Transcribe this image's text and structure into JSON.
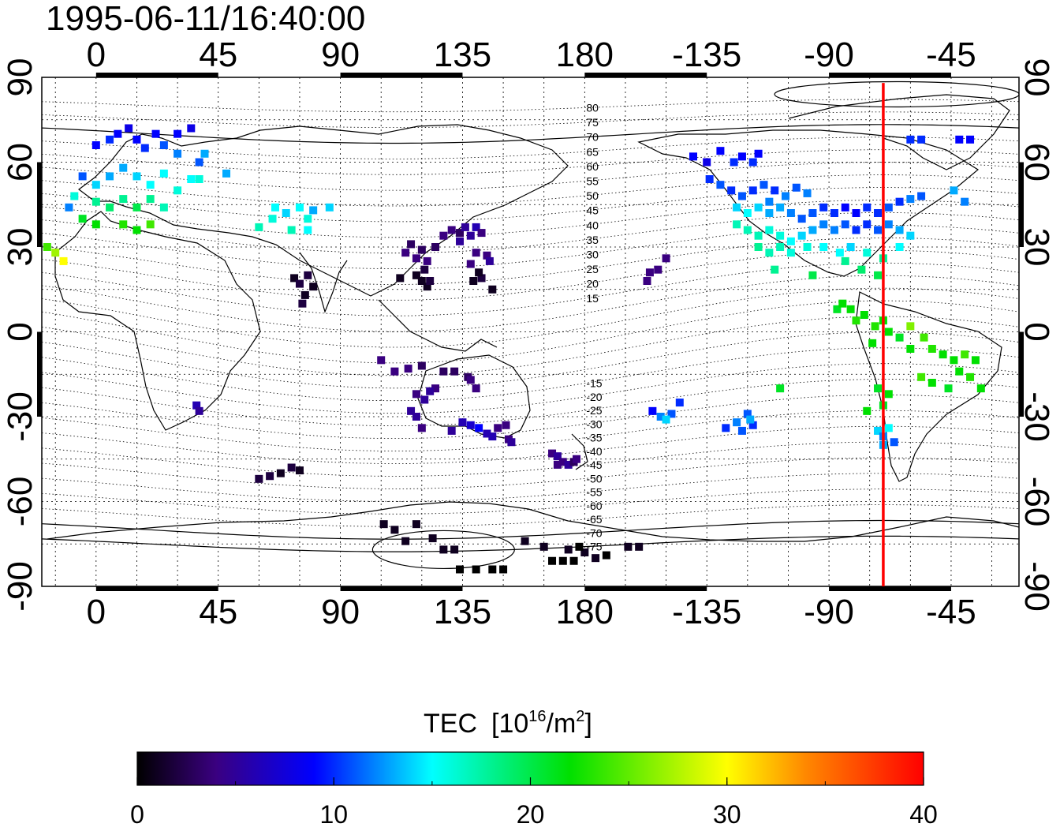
{
  "timestamp": "1995-06-11/16:40:00",
  "colorbar": {
    "title": "TEC",
    "unit_prefix": "[10",
    "unit_exp": "16",
    "unit_mid": "/m",
    "unit_exp2": "2",
    "unit_suffix": "]",
    "ticks": [
      "0",
      "10",
      "20",
      "30",
      "40"
    ],
    "range": [
      0,
      40
    ],
    "stops": [
      {
        "v": 0,
        "color": "#000000"
      },
      {
        "v": 4,
        "color": "#3a0080"
      },
      {
        "v": 9,
        "color": "#0000ff"
      },
      {
        "v": 15,
        "color": "#00ffff"
      },
      {
        "v": 22,
        "color": "#00e000"
      },
      {
        "v": 30,
        "color": "#ffff00"
      },
      {
        "v": 34,
        "color": "#ff8800"
      },
      {
        "v": 40,
        "color": "#ff0000"
      }
    ]
  },
  "map": {
    "lon_ticks": [
      "0",
      "45",
      "90",
      "135",
      "180",
      "-135",
      "-90",
      "-45"
    ],
    "lat_ticks_left": [
      "90",
      "60",
      "30",
      "0",
      "-30",
      "-60",
      "-90"
    ],
    "lat_ticks_right": [
      "90",
      "60",
      "30",
      "0",
      "-30",
      "-60",
      "-90"
    ],
    "lon_range": [
      -20,
      340
    ],
    "lat_range": [
      -90,
      90
    ],
    "grid": true,
    "meridian_line": {
      "lon": 290,
      "color": "#ff0000"
    },
    "contour_labels": [
      "80",
      "75",
      "70",
      "65",
      "60",
      "55",
      "50",
      "45",
      "40",
      "35",
      "30",
      "25",
      "20",
      "15",
      "-15",
      "-20",
      "-25",
      "-30",
      "-35",
      "-40",
      "-45",
      "-50",
      "-55",
      "-60",
      "-65",
      "-70",
      "-75"
    ]
  },
  "tec_observations": [
    {
      "lon": 0,
      "lat": 66,
      "v": 9
    },
    {
      "lon": 5,
      "lat": 68,
      "v": 10
    },
    {
      "lon": 8,
      "lat": 70,
      "v": 9
    },
    {
      "lon": 12,
      "lat": 72,
      "v": 8
    },
    {
      "lon": 15,
      "lat": 68,
      "v": 9
    },
    {
      "lon": 18,
      "lat": 65,
      "v": 10
    },
    {
      "lon": 22,
      "lat": 70,
      "v": 9
    },
    {
      "lon": 25,
      "lat": 66,
      "v": 11
    },
    {
      "lon": 30,
      "lat": 70,
      "v": 9
    },
    {
      "lon": 30,
      "lat": 63,
      "v": 12
    },
    {
      "lon": 35,
      "lat": 72,
      "v": 8
    },
    {
      "lon": 38,
      "lat": 60,
      "v": 11
    },
    {
      "lon": -5,
      "lat": 55,
      "v": 11
    },
    {
      "lon": 0,
      "lat": 52,
      "v": 14
    },
    {
      "lon": 5,
      "lat": 55,
      "v": 13
    },
    {
      "lon": 10,
      "lat": 58,
      "v": 13
    },
    {
      "lon": 15,
      "lat": 55,
      "v": 14
    },
    {
      "lon": 20,
      "lat": 52,
      "v": 15
    },
    {
      "lon": 25,
      "lat": 56,
      "v": 15
    },
    {
      "lon": 30,
      "lat": 50,
      "v": 16
    },
    {
      "lon": 35,
      "lat": 54,
      "v": 15
    },
    {
      "lon": -8,
      "lat": 48,
      "v": 16
    },
    {
      "lon": 0,
      "lat": 46,
      "v": 18
    },
    {
      "lon": 5,
      "lat": 44,
      "v": 19
    },
    {
      "lon": 10,
      "lat": 47,
      "v": 18
    },
    {
      "lon": 15,
      "lat": 44,
      "v": 20
    },
    {
      "lon": 20,
      "lat": 47,
      "v": 18
    },
    {
      "lon": 25,
      "lat": 44,
      "v": 17
    },
    {
      "lon": -5,
      "lat": 40,
      "v": 21
    },
    {
      "lon": 0,
      "lat": 38,
      "v": 22
    },
    {
      "lon": 10,
      "lat": 38,
      "v": 23
    },
    {
      "lon": 15,
      "lat": 36,
      "v": 22
    },
    {
      "lon": 20,
      "lat": 38,
      "v": 24
    },
    {
      "lon": -15,
      "lat": 28,
      "v": 27
    },
    {
      "lon": -12,
      "lat": 25,
      "v": 30
    },
    {
      "lon": -18,
      "lat": 30,
      "v": 24
    },
    {
      "lon": -10,
      "lat": 44,
      "v": 12
    },
    {
      "lon": 40,
      "lat": 63,
      "v": 13
    },
    {
      "lon": 48,
      "lat": 56,
      "v": 13
    },
    {
      "lon": 38,
      "lat": 54,
      "v": 16
    },
    {
      "lon": 60,
      "lat": 37,
      "v": 17
    },
    {
      "lon": 65,
      "lat": 40,
      "v": 16
    },
    {
      "lon": 70,
      "lat": 42,
      "v": 14
    },
    {
      "lon": 75,
      "lat": 44,
      "v": 15
    },
    {
      "lon": 78,
      "lat": 40,
      "v": 16
    },
    {
      "lon": 72,
      "lat": 36,
      "v": 17
    },
    {
      "lon": 80,
      "lat": 43,
      "v": 13
    },
    {
      "lon": 86,
      "lat": 44,
      "v": 14
    },
    {
      "lon": 78,
      "lat": 36,
      "v": 15
    },
    {
      "lon": 66,
      "lat": 44,
      "v": 15
    },
    {
      "lon": 37,
      "lat": -26,
      "v": 6
    },
    {
      "lon": 38,
      "lat": -28,
      "v": 5
    },
    {
      "lon": 73,
      "lat": 19,
      "v": 1
    },
    {
      "lon": 75,
      "lat": 17,
      "v": 2
    },
    {
      "lon": 77,
      "lat": 13,
      "v": 1
    },
    {
      "lon": 78,
      "lat": 20,
      "v": 2
    },
    {
      "lon": 80,
      "lat": 16,
      "v": 1
    },
    {
      "lon": 76,
      "lat": 10,
      "v": 2
    },
    {
      "lon": 114,
      "lat": 28,
      "v": 4
    },
    {
      "lon": 116,
      "lat": 31,
      "v": 3
    },
    {
      "lon": 118,
      "lat": 26,
      "v": 4
    },
    {
      "lon": 120,
      "lat": 29,
      "v": 3
    },
    {
      "lon": 122,
      "lat": 25,
      "v": 4
    },
    {
      "lon": 125,
      "lat": 30,
      "v": 3
    },
    {
      "lon": 128,
      "lat": 34,
      "v": 4
    },
    {
      "lon": 131,
      "lat": 36,
      "v": 4
    },
    {
      "lon": 134,
      "lat": 35,
      "v": 3
    },
    {
      "lon": 136,
      "lat": 37,
      "v": 5
    },
    {
      "lon": 138,
      "lat": 34,
      "v": 5
    },
    {
      "lon": 140,
      "lat": 37,
      "v": 6
    },
    {
      "lon": 142,
      "lat": 35,
      "v": 4
    },
    {
      "lon": 134,
      "lat": 32,
      "v": 5
    },
    {
      "lon": 140,
      "lat": 28,
      "v": 4
    },
    {
      "lon": 144,
      "lat": 27,
      "v": 4
    },
    {
      "lon": 138,
      "lat": 24,
      "v": 4
    },
    {
      "lon": 145,
      "lat": 25,
      "v": 5
    },
    {
      "lon": 121,
      "lat": 22,
      "v": 2
    },
    {
      "lon": 120,
      "lat": 18,
      "v": 1
    },
    {
      "lon": 122,
      "lat": 16,
      "v": 1
    },
    {
      "lon": 118,
      "lat": 20,
      "v": 1
    },
    {
      "lon": 123,
      "lat": 18,
      "v": 2
    },
    {
      "lon": 112,
      "lat": 19,
      "v": 1
    },
    {
      "lon": 139,
      "lat": 18,
      "v": 1
    },
    {
      "lon": 142,
      "lat": 19,
      "v": 2
    },
    {
      "lon": 146,
      "lat": 15,
      "v": 1
    },
    {
      "lon": 141,
      "lat": 21,
      "v": 1
    },
    {
      "lon": 105,
      "lat": -10,
      "v": 4
    },
    {
      "lon": 110,
      "lat": -14,
      "v": 4
    },
    {
      "lon": 115,
      "lat": -13,
      "v": 4
    },
    {
      "lon": 120,
      "lat": -12,
      "v": 3
    },
    {
      "lon": 128,
      "lat": -14,
      "v": 3
    },
    {
      "lon": 132,
      "lat": -14,
      "v": 3
    },
    {
      "lon": 137,
      "lat": -16,
      "v": 3
    },
    {
      "lon": 140,
      "lat": -20,
      "v": 4
    },
    {
      "lon": 138,
      "lat": -17,
      "v": 4
    },
    {
      "lon": 125,
      "lat": -20,
      "v": 4
    },
    {
      "lon": 118,
      "lat": -22,
      "v": 4
    },
    {
      "lon": 121,
      "lat": -24,
      "v": 5
    },
    {
      "lon": 123,
      "lat": -21,
      "v": 5
    },
    {
      "lon": 116,
      "lat": -28,
      "v": 5
    },
    {
      "lon": 118,
      "lat": -30,
      "v": 5
    },
    {
      "lon": 120,
      "lat": -34,
      "v": 4
    },
    {
      "lon": 135,
      "lat": -32,
      "v": 6
    },
    {
      "lon": 138,
      "lat": -33,
      "v": 7
    },
    {
      "lon": 141,
      "lat": -34,
      "v": 9
    },
    {
      "lon": 144,
      "lat": -36,
      "v": 6
    },
    {
      "lon": 146,
      "lat": -37,
      "v": 6
    },
    {
      "lon": 148,
      "lat": -34,
      "v": 4
    },
    {
      "lon": 151,
      "lat": -33,
      "v": 4
    },
    {
      "lon": 152,
      "lat": -38,
      "v": 4
    },
    {
      "lon": 131,
      "lat": -35,
      "v": 5
    },
    {
      "lon": 153,
      "lat": -39,
      "v": 5
    },
    {
      "lon": 168,
      "lat": -43,
      "v": 4
    },
    {
      "lon": 170,
      "lat": -44,
      "v": 5
    },
    {
      "lon": 172,
      "lat": -46,
      "v": 4
    },
    {
      "lon": 174,
      "lat": -47,
      "v": 5
    },
    {
      "lon": 176,
      "lat": -46,
      "v": 3
    },
    {
      "lon": 170,
      "lat": -47,
      "v": 4
    },
    {
      "lon": 177,
      "lat": -45,
      "v": 4
    },
    {
      "lon": 60,
      "lat": -52,
      "v": 2
    },
    {
      "lon": 64,
      "lat": -51,
      "v": 2
    },
    {
      "lon": 68,
      "lat": -50,
      "v": 1
    },
    {
      "lon": 72,
      "lat": -48,
      "v": 2
    },
    {
      "lon": 75,
      "lat": -49,
      "v": 1
    },
    {
      "lon": 106,
      "lat": -68,
      "v": 1
    },
    {
      "lon": 110,
      "lat": -70,
      "v": 1
    },
    {
      "lon": 114,
      "lat": -74,
      "v": 1
    },
    {
      "lon": 118,
      "lat": -68,
      "v": 1
    },
    {
      "lon": 124,
      "lat": -73,
      "v": 1
    },
    {
      "lon": 128,
      "lat": -77,
      "v": 1
    },
    {
      "lon": 132,
      "lat": -77,
      "v": 1
    },
    {
      "lon": 134,
      "lat": -84,
      "v": 0
    },
    {
      "lon": 140,
      "lat": -84,
      "v": 0
    },
    {
      "lon": 146,
      "lat": -84,
      "v": 0
    },
    {
      "lon": 150,
      "lat": -84,
      "v": 0
    },
    {
      "lon": 158,
      "lat": -74,
      "v": 1
    },
    {
      "lon": 165,
      "lat": -76,
      "v": 1
    },
    {
      "lon": 168,
      "lat": -81,
      "v": 0
    },
    {
      "lon": 172,
      "lat": -81,
      "v": 0
    },
    {
      "lon": 176,
      "lat": -81,
      "v": 0
    },
    {
      "lon": 174,
      "lat": -77,
      "v": 1
    },
    {
      "lon": 180,
      "lat": -78,
      "v": 1
    },
    {
      "lon": 184,
      "lat": -80,
      "v": 1
    },
    {
      "lon": 188,
      "lat": -79,
      "v": 0
    },
    {
      "lon": 196,
      "lat": -76,
      "v": 1
    },
    {
      "lon": 200,
      "lat": -76,
      "v": 1
    },
    {
      "lon": 178,
      "lat": -76,
      "v": 0
    },
    {
      "lon": 204,
      "lat": 21,
      "v": 4
    },
    {
      "lon": 207,
      "lat": 22,
      "v": 4
    },
    {
      "lon": 210,
      "lat": 26,
      "v": 4
    },
    {
      "lon": 203,
      "lat": 18,
      "v": 4
    },
    {
      "lon": 205,
      "lat": -28,
      "v": 9
    },
    {
      "lon": 208,
      "lat": -30,
      "v": 12
    },
    {
      "lon": 212,
      "lat": -29,
      "v": 11
    },
    {
      "lon": 215,
      "lat": -25,
      "v": 10
    },
    {
      "lon": 210,
      "lat": -31,
      "v": 14
    },
    {
      "lon": 232,
      "lat": -34,
      "v": 10
    },
    {
      "lon": 236,
      "lat": -32,
      "v": 12
    },
    {
      "lon": 238,
      "lat": -35,
      "v": 11
    },
    {
      "lon": 242,
      "lat": -33,
      "v": 10
    },
    {
      "lon": 240,
      "lat": -29,
      "v": 11
    },
    {
      "lon": 241,
      "lat": -31,
      "v": 13
    },
    {
      "lon": 220,
      "lat": 62,
      "v": 9
    },
    {
      "lon": 225,
      "lat": 60,
      "v": 8
    },
    {
      "lon": 230,
      "lat": 64,
      "v": 9
    },
    {
      "lon": 235,
      "lat": 60,
      "v": 10
    },
    {
      "lon": 238,
      "lat": 62,
      "v": 9
    },
    {
      "lon": 242,
      "lat": 60,
      "v": 10
    },
    {
      "lon": 244,
      "lat": 63,
      "v": 9
    },
    {
      "lon": 226,
      "lat": 54,
      "v": 10
    },
    {
      "lon": 230,
      "lat": 52,
      "v": 11
    },
    {
      "lon": 234,
      "lat": 50,
      "v": 10
    },
    {
      "lon": 238,
      "lat": 48,
      "v": 11
    },
    {
      "lon": 242,
      "lat": 50,
      "v": 10
    },
    {
      "lon": 246,
      "lat": 52,
      "v": 11
    },
    {
      "lon": 250,
      "lat": 50,
      "v": 10
    },
    {
      "lon": 254,
      "lat": 48,
      "v": 12
    },
    {
      "lon": 258,
      "lat": 51,
      "v": 11
    },
    {
      "lon": 262,
      "lat": 49,
      "v": 12
    },
    {
      "lon": 248,
      "lat": 46,
      "v": 12
    },
    {
      "lon": 236,
      "lat": 44,
      "v": 14
    },
    {
      "lon": 240,
      "lat": 42,
      "v": 15
    },
    {
      "lon": 244,
      "lat": 44,
      "v": 14
    },
    {
      "lon": 248,
      "lat": 42,
      "v": 13
    },
    {
      "lon": 252,
      "lat": 44,
      "v": 13
    },
    {
      "lon": 256,
      "lat": 42,
      "v": 12
    },
    {
      "lon": 260,
      "lat": 40,
      "v": 11
    },
    {
      "lon": 264,
      "lat": 42,
      "v": 11
    },
    {
      "lon": 268,
      "lat": 44,
      "v": 10
    },
    {
      "lon": 272,
      "lat": 42,
      "v": 10
    },
    {
      "lon": 276,
      "lat": 44,
      "v": 9
    },
    {
      "lon": 280,
      "lat": 42,
      "v": 9
    },
    {
      "lon": 284,
      "lat": 44,
      "v": 10
    },
    {
      "lon": 288,
      "lat": 42,
      "v": 10
    },
    {
      "lon": 292,
      "lat": 44,
      "v": 11
    },
    {
      "lon": 296,
      "lat": 46,
      "v": 10
    },
    {
      "lon": 300,
      "lat": 47,
      "v": 12
    },
    {
      "lon": 304,
      "lat": 48,
      "v": 11
    },
    {
      "lon": 236,
      "lat": 38,
      "v": 17
    },
    {
      "lon": 240,
      "lat": 36,
      "v": 17
    },
    {
      "lon": 244,
      "lat": 34,
      "v": 17
    },
    {
      "lon": 248,
      "lat": 36,
      "v": 16
    },
    {
      "lon": 252,
      "lat": 34,
      "v": 16
    },
    {
      "lon": 256,
      "lat": 32,
      "v": 15
    },
    {
      "lon": 260,
      "lat": 34,
      "v": 14
    },
    {
      "lon": 264,
      "lat": 36,
      "v": 13
    },
    {
      "lon": 268,
      "lat": 38,
      "v": 12
    },
    {
      "lon": 272,
      "lat": 36,
      "v": 12
    },
    {
      "lon": 276,
      "lat": 38,
      "v": 11
    },
    {
      "lon": 280,
      "lat": 36,
      "v": 10
    },
    {
      "lon": 284,
      "lat": 38,
      "v": 10
    },
    {
      "lon": 288,
      "lat": 36,
      "v": 11
    },
    {
      "lon": 292,
      "lat": 38,
      "v": 12
    },
    {
      "lon": 296,
      "lat": 36,
      "v": 13
    },
    {
      "lon": 300,
      "lat": 34,
      "v": 14
    },
    {
      "lon": 244,
      "lat": 30,
      "v": 18
    },
    {
      "lon": 248,
      "lat": 28,
      "v": 17
    },
    {
      "lon": 252,
      "lat": 30,
      "v": 17
    },
    {
      "lon": 256,
      "lat": 28,
      "v": 16
    },
    {
      "lon": 262,
      "lat": 30,
      "v": 16
    },
    {
      "lon": 268,
      "lat": 30,
      "v": 15
    },
    {
      "lon": 274,
      "lat": 28,
      "v": 15
    },
    {
      "lon": 278,
      "lat": 30,
      "v": 14
    },
    {
      "lon": 284,
      "lat": 28,
      "v": 16
    },
    {
      "lon": 290,
      "lat": 26,
      "v": 18
    },
    {
      "lon": 296,
      "lat": 30,
      "v": 15
    },
    {
      "lon": 276,
      "lat": 25,
      "v": 18
    },
    {
      "lon": 282,
      "lat": 22,
      "v": 19
    },
    {
      "lon": 288,
      "lat": 20,
      "v": 20
    },
    {
      "lon": 250,
      "lat": 22,
      "v": 18
    },
    {
      "lon": 264,
      "lat": 20,
      "v": 20
    },
    {
      "lon": 273,
      "lat": 8,
      "v": 21
    },
    {
      "lon": 275,
      "lat": 10,
      "v": 22
    },
    {
      "lon": 278,
      "lat": 8,
      "v": 22
    },
    {
      "lon": 280,
      "lat": 4,
      "v": 23
    },
    {
      "lon": 283,
      "lat": 6,
      "v": 22
    },
    {
      "lon": 287,
      "lat": 2,
      "v": 23
    },
    {
      "lon": 290,
      "lat": 4,
      "v": 22
    },
    {
      "lon": 286,
      "lat": -4,
      "v": 22
    },
    {
      "lon": 292,
      "lat": 0,
      "v": 22
    },
    {
      "lon": 296,
      "lat": -2,
      "v": 21
    },
    {
      "lon": 300,
      "lat": -6,
      "v": 22
    },
    {
      "lon": 305,
      "lat": -2,
      "v": 24
    },
    {
      "lon": 308,
      "lat": -6,
      "v": 23
    },
    {
      "lon": 312,
      "lat": -8,
      "v": 22
    },
    {
      "lon": 316,
      "lat": -10,
      "v": 22
    },
    {
      "lon": 320,
      "lat": -8,
      "v": 24
    },
    {
      "lon": 324,
      "lat": -10,
      "v": 22
    },
    {
      "lon": 318,
      "lat": -14,
      "v": 22
    },
    {
      "lon": 322,
      "lat": -16,
      "v": 23
    },
    {
      "lon": 326,
      "lat": -20,
      "v": 22
    },
    {
      "lon": 314,
      "lat": -20,
      "v": 21
    },
    {
      "lon": 308,
      "lat": -18,
      "v": 22
    },
    {
      "lon": 304,
      "lat": -16,
      "v": 24
    },
    {
      "lon": 300,
      "lat": 2,
      "v": 26
    },
    {
      "lon": 288,
      "lat": -20,
      "v": 21
    },
    {
      "lon": 292,
      "lat": -22,
      "v": 22
    },
    {
      "lon": 290,
      "lat": -26,
      "v": 21
    },
    {
      "lon": 284,
      "lat": -28,
      "v": 22
    },
    {
      "lon": 288,
      "lat": -35,
      "v": 14
    },
    {
      "lon": 290,
      "lat": -37,
      "v": 12
    },
    {
      "lon": 292,
      "lat": -34,
      "v": 15
    },
    {
      "lon": 294,
      "lat": -39,
      "v": 11
    },
    {
      "lon": 290,
      "lat": -40,
      "v": 13
    },
    {
      "lon": 252,
      "lat": -20,
      "v": 21
    },
    {
      "lon": 300,
      "lat": 68,
      "v": 10
    },
    {
      "lon": 304,
      "lat": 68,
      "v": 10
    },
    {
      "lon": 318,
      "lat": 68,
      "v": 9
    },
    {
      "lon": 322,
      "lat": 68,
      "v": 9
    },
    {
      "lon": 316,
      "lat": 50,
      "v": 13
    },
    {
      "lon": 320,
      "lat": 46,
      "v": 12
    }
  ]
}
